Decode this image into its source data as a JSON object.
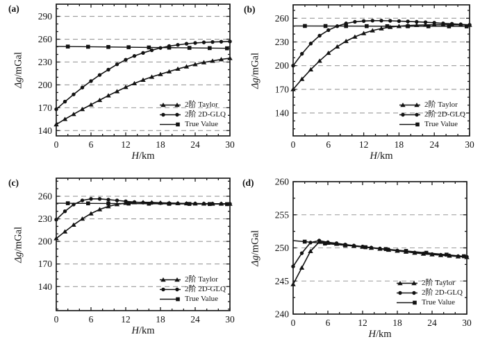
{
  "figure": {
    "legend": [
      {
        "label": "2阶  Taylor",
        "marker": "triangle"
      },
      {
        "label": "2阶  2D-GLQ",
        "marker": "circle"
      },
      {
        "label": "True Value",
        "marker": "square"
      }
    ],
    "colors": {
      "curve": "#121212",
      "grid": "#9a9a9a",
      "background": "#ffffff"
    }
  },
  "chart_data": {
    "type": "line",
    "grid": "dashed-horizontal",
    "legend_position": "lower-right-inside",
    "panels": [
      {
        "id": "a",
        "label": "(a)",
        "xlabel_italic": "H",
        "xlabel_rest": "/km",
        "ylabel_italic": "Δg",
        "ylabel_rest": "/mGal",
        "xlim": [
          0,
          30
        ],
        "ylim": [
          133,
          306
        ],
        "x_ticks": [
          0,
          6,
          12,
          18,
          24,
          30
        ],
        "x_minor_step": 2,
        "y_ticks": [
          140,
          170,
          200,
          230,
          260,
          290
        ],
        "y_minor_step": 10,
        "grid_y": [
          140,
          170,
          200,
          230,
          260,
          290
        ],
        "series": [
          {
            "name": "2阶 Taylor",
            "marker": "triangle",
            "x": [
              0,
              1.5,
              3,
              4.5,
              6,
              7.5,
              9,
              10.5,
              12,
              13.5,
              15,
              16.5,
              18,
              19.5,
              21,
              22.5,
              24,
              25.5,
              27,
              28.5,
              30
            ],
            "y": [
              148,
              155,
              161.5,
              168,
              174,
              180,
              186,
              191.5,
              197,
              202,
              206.5,
              210.5,
              214,
              217.5,
              221,
              224,
              227,
              229.5,
              231.5,
              233.5,
              235
            ]
          },
          {
            "name": "2阶 2D-GLQ",
            "marker": "circle",
            "x": [
              0,
              1.5,
              3,
              4.5,
              6,
              7.5,
              9,
              10.5,
              12,
              13.5,
              15,
              16.5,
              18,
              19.5,
              21,
              22.5,
              24,
              25.5,
              27,
              28.5,
              30
            ],
            "y": [
              168,
              178,
              187.5,
              196.5,
              205,
              213,
              220,
              227,
              233,
              238,
              242,
              245.5,
              248.5,
              251,
              252.5,
              254,
              255,
              255.8,
              256.3,
              256.7,
              257
            ]
          },
          {
            "name": "True Value",
            "marker": "square",
            "x": [
              0,
              30
            ],
            "y": [
              250.5,
              248
            ],
            "marker_x": [
              2,
              5.5,
              9,
              12.5,
              16,
              19.5,
              23,
              26.5,
              29.5
            ]
          }
        ]
      },
      {
        "id": "b",
        "label": "(b)",
        "xlabel_italic": "H",
        "xlabel_rest": "/km",
        "ylabel_italic": "Δg",
        "ylabel_rest": "/mGal",
        "xlim": [
          0,
          30
        ],
        "ylim": [
          111,
          277
        ],
        "x_ticks": [
          0,
          6,
          12,
          18,
          24,
          30
        ],
        "x_minor_step": 2,
        "y_ticks": [
          140,
          170,
          200,
          230,
          260
        ],
        "y_minor_step": 10,
        "grid_y": [
          140,
          170,
          200,
          230,
          260
        ],
        "series": [
          {
            "name": "2阶 Taylor",
            "marker": "triangle",
            "x": [
              0,
              1.5,
              3,
              4.5,
              6,
              7.5,
              9,
              10.5,
              12,
              13.5,
              15,
              16.5,
              18,
              19.5,
              21,
              22.5,
              24,
              25.5,
              27,
              28.5,
              30
            ],
            "y": [
              170,
              183,
              195,
              206,
              216,
              224,
              231,
              236.5,
              241,
              244.5,
              247,
              248.8,
              250,
              250.8,
              251.3,
              251.6,
              251.8,
              251.8,
              251.8,
              251.7,
              251.5
            ]
          },
          {
            "name": "2阶 2D-GLQ",
            "marker": "circle",
            "x": [
              0,
              1.5,
              3,
              4.5,
              6,
              7.5,
              9,
              10.5,
              12,
              13.5,
              15,
              16.5,
              18,
              19.5,
              21,
              22.5,
              24,
              25.5,
              27,
              28.5,
              30
            ],
            "y": [
              200,
              215,
              228,
              238,
              245,
              250,
              253.5,
              255.5,
              256.5,
              257,
              257,
              256.8,
              256.4,
              256,
              255.5,
              255,
              254.3,
              253.6,
              253,
              252.3,
              251.7
            ]
          },
          {
            "name": "True Value",
            "marker": "square",
            "x": [
              0,
              30
            ],
            "y": [
              250.3,
              249.7
            ],
            "marker_x": [
              2,
              5.5,
              9,
              12.5,
              16,
              19.5,
              23,
              26.5,
              29.5
            ]
          }
        ]
      },
      {
        "id": "c",
        "label": "(c)",
        "xlabel_italic": "H",
        "xlabel_rest": "/km",
        "ylabel_italic": "Δg",
        "ylabel_rest": "/mGal",
        "xlim": [
          0,
          30
        ],
        "ylim": [
          108,
          284
        ],
        "x_ticks": [
          0,
          6,
          12,
          18,
          24,
          30
        ],
        "x_minor_step": 2,
        "y_ticks": [
          140,
          170,
          200,
          230,
          260
        ],
        "y_minor_step": 10,
        "grid_y": [
          140,
          170,
          200,
          230,
          260
        ],
        "series": [
          {
            "name": "2阶 Taylor",
            "marker": "triangle",
            "x": [
              0,
              1.5,
              3,
              4.5,
              6,
              7.5,
              9,
              10.5,
              12,
              13.5,
              15,
              16.5,
              18,
              19.5,
              21,
              22.5,
              24,
              25.5,
              27,
              28.5,
              30
            ],
            "y": [
              204,
              213,
              222,
              230,
              237,
              242.5,
              246.5,
              249.3,
              251,
              251.8,
              252,
              251.8,
              251.4,
              251,
              250.7,
              250.4,
              250.2,
              250.1,
              250,
              250,
              249.9
            ]
          },
          {
            "name": "2阶 2D-GLQ",
            "marker": "circle",
            "x": [
              0,
              1.5,
              3,
              4.5,
              6,
              7.5,
              9,
              10.5,
              12,
              13.5,
              15,
              16.5,
              18,
              19.5,
              21,
              22.5,
              24,
              25.5,
              27,
              28.5,
              30
            ],
            "y": [
              229,
              240,
              249,
              254.5,
              256.5,
              256.5,
              255.5,
              254.5,
              253.3,
              252.3,
              251.6,
              251.2,
              250.9,
              250.7,
              250.5,
              250.4,
              250.3,
              250.2,
              250.1,
              250,
              250
            ]
          },
          {
            "name": "True Value",
            "marker": "square",
            "x": [
              0,
              30
            ],
            "y": [
              250.8,
              249.5
            ],
            "marker_x": [
              2,
              5.5,
              9,
              12.5,
              16,
              19.5,
              23,
              26.5,
              29.5
            ]
          }
        ]
      },
      {
        "id": "d",
        "label": "(d)",
        "xlabel_italic": "H",
        "xlabel_rest": "/km",
        "ylabel_italic": "Δg",
        "ylabel_rest": "/mGal",
        "xlim": [
          0,
          30
        ],
        "ylim": [
          240,
          260
        ],
        "x_ticks": [
          0,
          6,
          12,
          18,
          24,
          30
        ],
        "x_minor_step": 2,
        "y_ticks": [
          240,
          245,
          250,
          255,
          260
        ],
        "y_minor_step": 2.5,
        "grid_y": [
          245,
          250,
          255
        ],
        "series": [
          {
            "name": "2阶 Taylor",
            "marker": "triangle",
            "x": [
              0,
              1.5,
              3,
              4.5,
              6,
              7.5,
              9,
              10.5,
              12,
              13.5,
              15,
              16.5,
              18,
              19.5,
              21,
              22.5,
              24,
              25.5,
              27,
              28.5,
              30
            ],
            "y": [
              244.5,
              247,
              249.5,
              250.9,
              250.75,
              250.6,
              250.45,
              250.3,
              250.15,
              250,
              249.85,
              249.7,
              249.55,
              249.4,
              249.25,
              249.1,
              249,
              248.9,
              248.8,
              248.7,
              248.6
            ]
          },
          {
            "name": "2阶 2D-GLQ",
            "marker": "circle",
            "x": [
              0,
              1.5,
              3,
              4.5,
              6,
              7.5,
              9,
              10.5,
              12,
              13.5,
              15,
              16.5,
              18,
              19.5,
              21,
              22.5,
              24,
              25.5,
              27,
              28.5,
              30
            ],
            "y": [
              247.2,
              249.2,
              250.8,
              251.1,
              250.85,
              250.7,
              250.5,
              250.35,
              250.2,
              250.05,
              249.9,
              249.75,
              249.6,
              249.45,
              249.3,
              249.15,
              249.05,
              248.95,
              248.85,
              248.75,
              248.65
            ]
          },
          {
            "name": "True Value",
            "marker": "square",
            "x": [
              0,
              30
            ],
            "y": [
              251.1,
              248.7
            ],
            "marker_x": [
              2,
              5.5,
              9,
              12.5,
              16,
              19.5,
              23,
              26.5,
              29.5
            ]
          }
        ]
      }
    ]
  }
}
